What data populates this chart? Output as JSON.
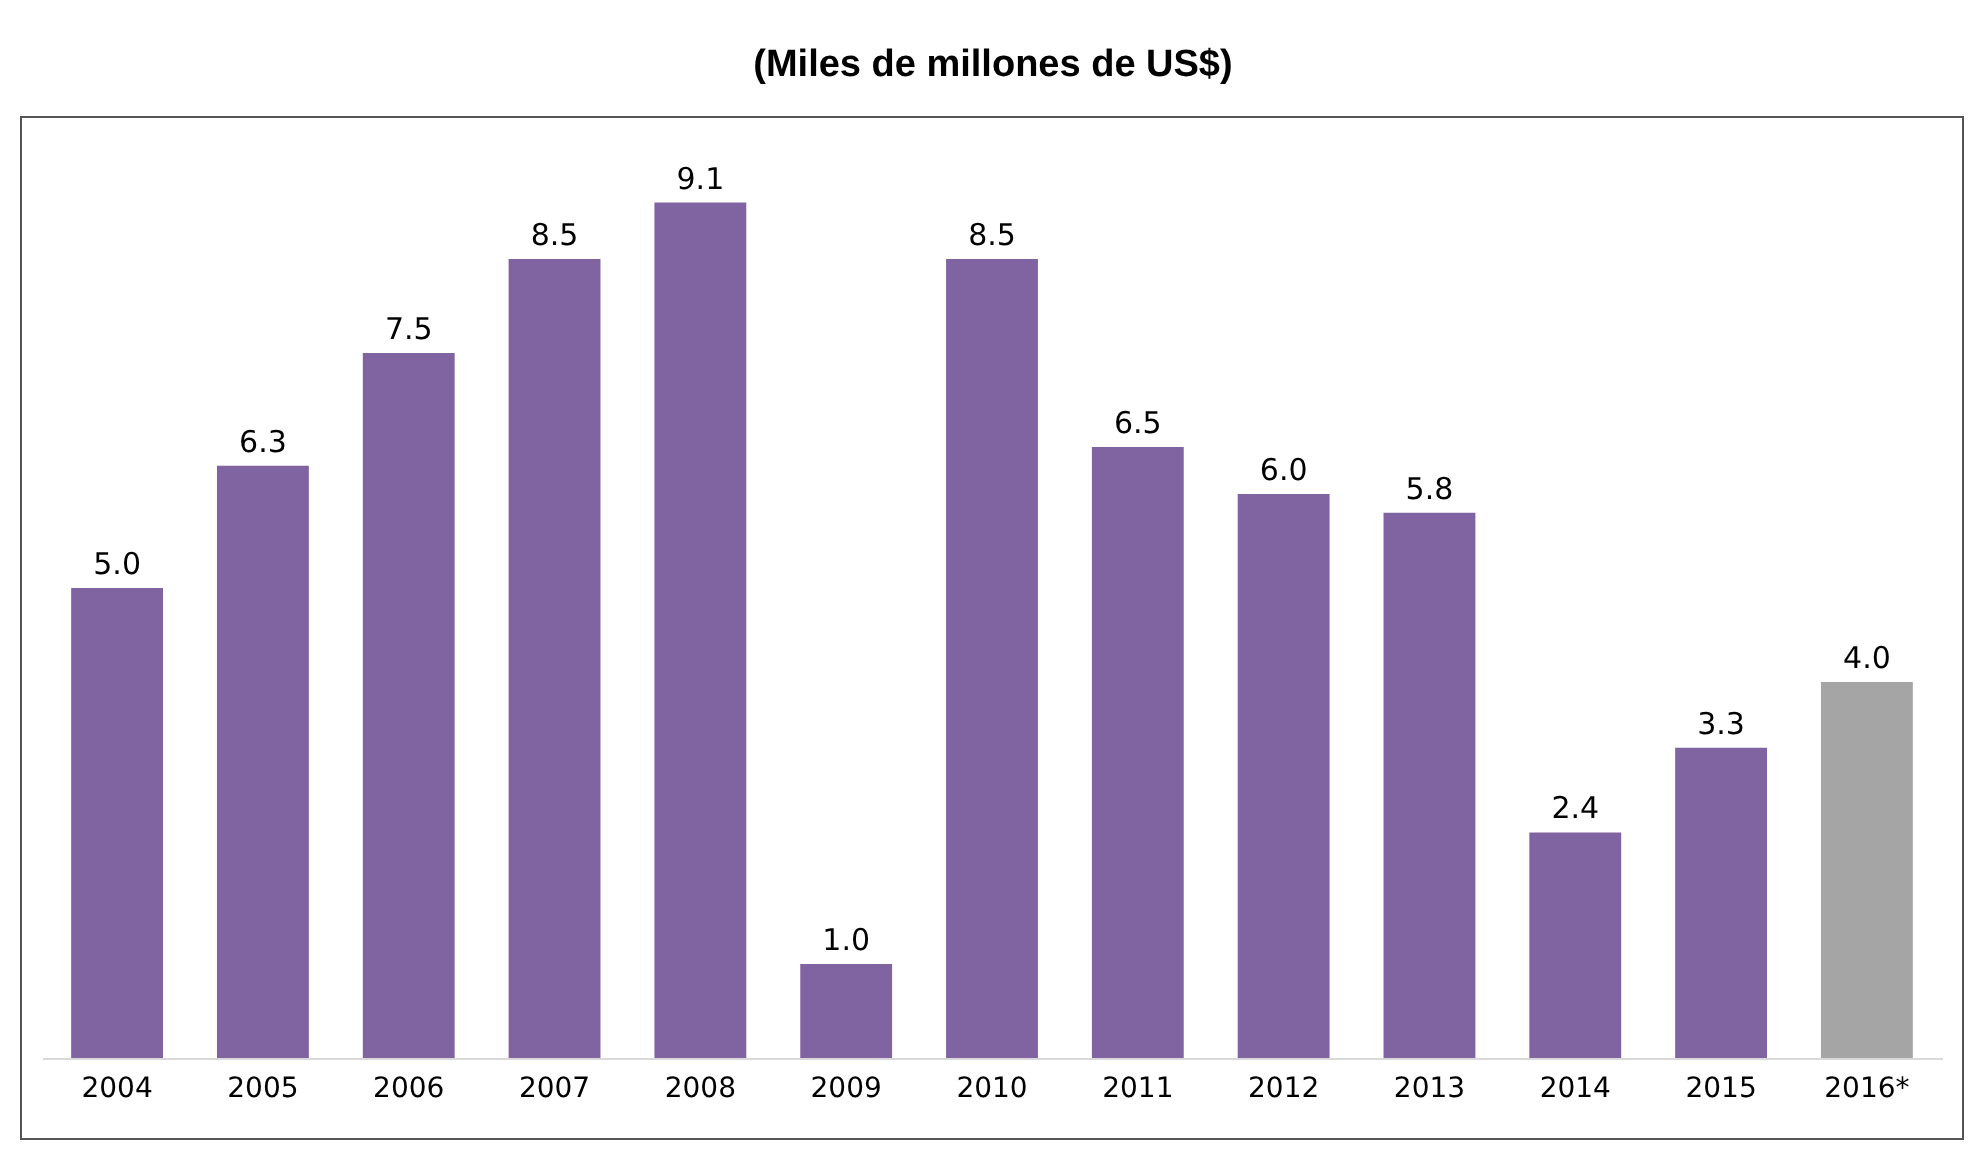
{
  "chart_data": {
    "type": "bar",
    "title": "(Miles de millones de US$)",
    "categories": [
      "2004",
      "2005",
      "2006",
      "2007",
      "2008",
      "2009",
      "2010",
      "2011",
      "2012",
      "2013",
      "2014",
      "2015",
      "2016*"
    ],
    "values": [
      5.0,
      6.3,
      7.5,
      8.5,
      9.1,
      1.0,
      8.5,
      6.5,
      6.0,
      5.8,
      2.4,
      3.3,
      4.0
    ],
    "colors": [
      "#8064a2",
      "#8064a2",
      "#8064a2",
      "#8064a2",
      "#8064a2",
      "#8064a2",
      "#8064a2",
      "#8064a2",
      "#8064a2",
      "#8064a2",
      "#8064a2",
      "#8064a2",
      "#a5a5a5"
    ],
    "value_labels": [
      "5.0",
      "6.3",
      "7.5",
      "8.5",
      "9.1",
      "1.0",
      "8.5",
      "6.5",
      "6.0",
      "5.8",
      "2.4",
      "3.3",
      "4.0"
    ]
  }
}
